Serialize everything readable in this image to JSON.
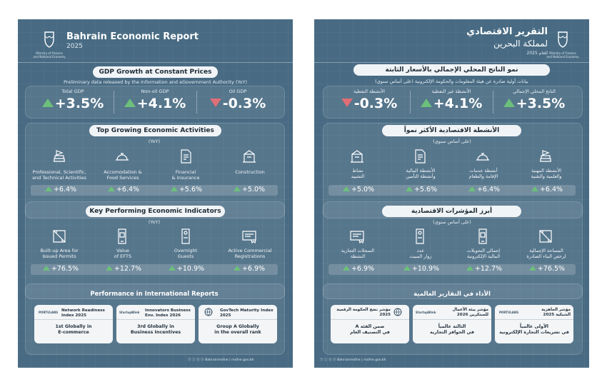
{
  "en": {
    "title": "Bahrain Economic Report",
    "year": "2025",
    "gdp": {
      "heading": "GDP Growth at Constant Prices",
      "subheading": "Preliminary data released by the Information and eGovernment Authority (YoY)",
      "metrics": [
        {
          "label": "Total GDP",
          "value": "+3.5%",
          "trend": "up"
        },
        {
          "label": "Non-oil GDP",
          "value": "+4.1%",
          "trend": "up"
        },
        {
          "label": "Oil GDP",
          "value": "-0.3%",
          "trend": "down"
        }
      ]
    },
    "activities": {
      "heading": "Top Growing Economic Activities",
      "sub": "(YoY)",
      "items": [
        {
          "label1": "Professional, Scientific,",
          "label2": "and Technical Activities",
          "value": "+6.4%",
          "icon": "books-icon"
        },
        {
          "label1": "Accomodation &",
          "label2": "Food Services",
          "value": "+6.4%",
          "icon": "cloche-icon"
        },
        {
          "label1": "Financial",
          "label2": "& Insurance",
          "value": "+5.6%",
          "icon": "finance-doc-icon"
        },
        {
          "label1": "Construction",
          "label2": "",
          "value": "+5.0%",
          "icon": "construction-icon"
        }
      ]
    },
    "indicators": {
      "heading": "Key Performing Economic Indicators",
      "sub": "(YoY)",
      "items": [
        {
          "label1": "Built-up Area for",
          "label2": "Issued Permits",
          "value": "+76.5%",
          "icon": "blueprint-icon"
        },
        {
          "label1": "Value",
          "label2": "of EFTS",
          "value": "+12.7%",
          "icon": "phone-payment-icon"
        },
        {
          "label1": "Overnight",
          "label2": "Guests",
          "value": "+10.9%",
          "icon": "door-hanger-icon"
        },
        {
          "label1": "Active Commercial",
          "label2": "Registrations",
          "value": "+6.9%",
          "icon": "certificate-icon"
        }
      ]
    },
    "international": {
      "heading": "Performance in International Reports",
      "cards": [
        {
          "badge": "PORTULANS",
          "title": "Network Readiness Index 2025",
          "line1": "1st Globally in",
          "line2": "E-commerce"
        },
        {
          "badge": "StartupBlink",
          "title": "Innovators Business Env. Index 2026",
          "line1": "3rd Globally in",
          "line2": "Business Incentives"
        },
        {
          "badge": "",
          "title": "GovTech Maturity Index 2025",
          "line1": "Group A Globally",
          "line2": "in the overall rank"
        }
      ]
    },
    "footer": {
      "social": "ⓕ ⓘ ⓧ ⓨ Bahrainmofne",
      "site": "mofne.gov.bh"
    },
    "logo_text": "Ministry of Finance and National Economy"
  },
  "ar": {
    "title": "التقرير الاقتصادي",
    "title2": "لمملكة البحرين",
    "year": "للعام 2025",
    "gdp": {
      "heading": "نمو الناتج المحلي الإجمالي بالأسعار الثابتة",
      "subheading": "بيانات أولية صادرة عن هيئة المعلومات والحكومة الإلكترونية (على أساس سنوي)",
      "metrics": [
        {
          "label": "الناتج المحلي الإجمالي",
          "value": "+3.5%",
          "trend": "up"
        },
        {
          "label": "الأنشطة غير النفطية",
          "value": "+4.1%",
          "trend": "up"
        },
        {
          "label": "الأنشطة النفطية",
          "value": "-0.3%",
          "trend": "down"
        }
      ]
    },
    "activities": {
      "heading": "الأنشطة الاقتصادية الأكثر نمواً",
      "sub": "(على أساس سنوي)",
      "items": [
        {
          "label1": "الأنشطة المهنية",
          "label2": "والعلمية والتقنية",
          "value": "+6.4%",
          "icon": "books-icon"
        },
        {
          "label1": "أنشطة خدمات",
          "label2": "الإقامة والطعام",
          "value": "+6.4%",
          "icon": "cloche-icon"
        },
        {
          "label1": "الأنشطة المالية",
          "label2": "وأنشطة التأمين",
          "value": "+5.6%",
          "icon": "finance-doc-icon"
        },
        {
          "label1": "نشاط",
          "label2": "التشييد",
          "value": "+5.0%",
          "icon": "construction-icon"
        }
      ]
    },
    "indicators": {
      "heading": "أبرز المؤشرات الاقتصادية",
      "sub": "(على أساس سنوي)",
      "items": [
        {
          "label1": "المساحة الإجمالية",
          "label2": "لرخص البناء الصادرة",
          "value": "+76.5%",
          "icon": "blueprint-icon"
        },
        {
          "label1": "إجمالي التحويلات",
          "label2": "المالية الإلكترونية",
          "value": "+12.7%",
          "icon": "phone-payment-icon"
        },
        {
          "label1": "عدد",
          "label2": "زوار المبيت",
          "value": "+10.9%",
          "icon": "door-hanger-icon"
        },
        {
          "label1": "السجلات التجارية",
          "label2": "النشطة",
          "value": "+6.9%",
          "icon": "certificate-icon"
        }
      ]
    },
    "international": {
      "heading": "الأداء في التقارير العالمية",
      "cards": [
        {
          "badge": "PORTULANS",
          "title": "مؤشر الجاهزية الشبكية 2025",
          "line1": "الأولى عالمياً",
          "line2": "في تشريعات التجارة الإلكترونية"
        },
        {
          "badge": "StartupBlink",
          "title": "مؤشر بيئة الأعمال للمبتكرين 2026",
          "line1": "الثالثة عالمياً",
          "line2": "في الحوافز التجارية"
        },
        {
          "badge": "",
          "title": "مؤشر نضج الحكومة الرقمية 2025",
          "line1": "ضمن الفئة A",
          "line2": "في التصنيف العام"
        }
      ]
    },
    "footer": {
      "social": "ⓕ ⓘ ⓧ ⓨ Bahrainmofne",
      "site": "mofne.gov.bh"
    },
    "logo_text": "Ministry of Finance and National Economy"
  },
  "colors": {
    "background": "#486b83",
    "up": "#6cc07b",
    "down": "#e06e76",
    "pill": "#f1f4f6"
  }
}
